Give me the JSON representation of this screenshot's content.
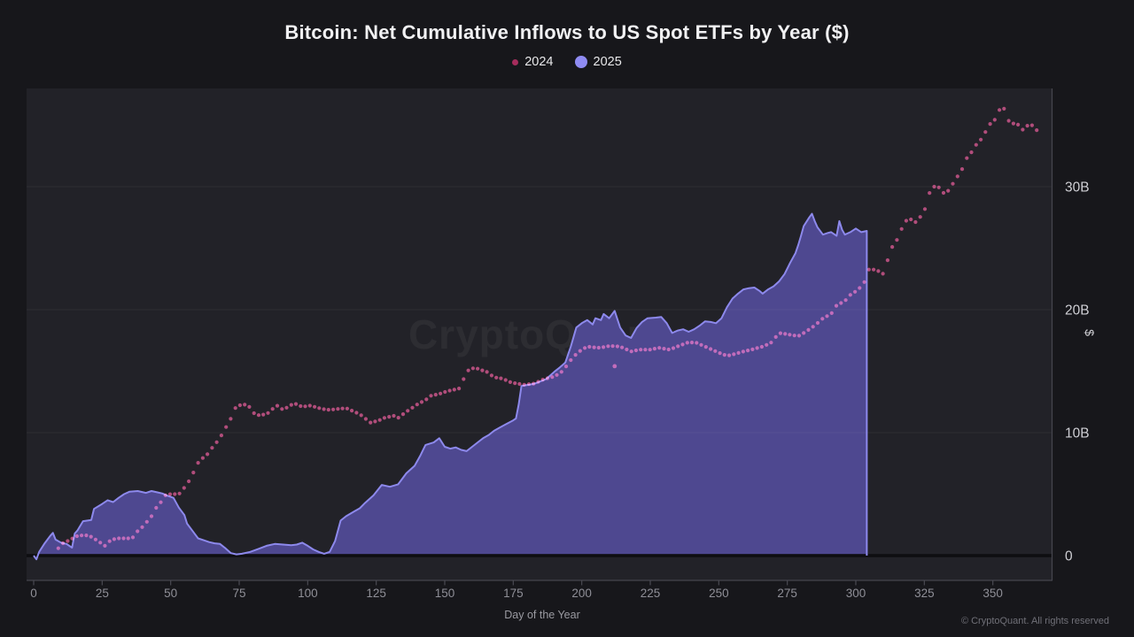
{
  "title": "Bitcoin: Net Cumulative Inflows to US Spot ETFs by Year ($)",
  "watermark": "CryptoQuant",
  "copyright": "© CryptoQuant. All rights reserved",
  "legend": {
    "items": [
      {
        "label": "2024",
        "color": "#a62c5c",
        "marker": "small-dot"
      },
      {
        "label": "2025",
        "color": "#8f8bf2",
        "marker": "large-dot"
      }
    ]
  },
  "chart_data": {
    "type": "line",
    "xlabel": "Day of the Year",
    "ylabel": "$",
    "value_unit": "billions of USD",
    "xlim": [
      0,
      372
    ],
    "ylim": [
      -2,
      38
    ],
    "grid": "horizontal",
    "legend_position": "top-center",
    "xticks": [
      0,
      25,
      50,
      75,
      100,
      125,
      150,
      175,
      200,
      225,
      250,
      275,
      300,
      325,
      350
    ],
    "yticks": [
      {
        "value": 0,
        "label": "0"
      },
      {
        "value": 10,
        "label": "10B"
      },
      {
        "value": 20,
        "label": "20B"
      },
      {
        "value": 30,
        "label": "30B"
      }
    ],
    "series": [
      {
        "name": "2024",
        "style": "dotted-scatter",
        "color": "#c23a74",
        "points": [
          [
            9,
            0.6
          ],
          [
            10,
            0.9
          ],
          [
            11,
            1.05
          ],
          [
            13,
            1.25
          ],
          [
            15,
            1.5
          ],
          [
            16,
            1.6
          ],
          [
            18,
            1.65
          ],
          [
            20,
            1.65
          ],
          [
            22,
            1.4
          ],
          [
            24,
            1.1
          ],
          [
            26,
            0.8
          ],
          [
            27,
            1.1
          ],
          [
            30,
            1.4
          ],
          [
            33,
            1.4
          ],
          [
            36,
            1.4
          ],
          [
            37,
            1.8
          ],
          [
            40,
            2.4
          ],
          [
            43,
            3.2
          ],
          [
            44,
            3.7
          ],
          [
            47,
            4.5
          ],
          [
            48,
            4.9
          ],
          [
            50,
            5.0
          ],
          [
            53,
            5.0
          ],
          [
            56,
            5.8
          ],
          [
            57,
            6.2
          ],
          [
            59,
            7.05
          ],
          [
            60,
            7.55
          ],
          [
            62,
            8.0
          ],
          [
            64,
            8.35
          ],
          [
            66,
            9.1
          ],
          [
            68,
            9.4
          ],
          [
            69,
            10.15
          ],
          [
            71,
            10.65
          ],
          [
            73,
            11.7
          ],
          [
            74,
            12.2
          ],
          [
            78,
            12.3
          ],
          [
            81,
            11.4
          ],
          [
            85,
            11.5
          ],
          [
            87,
            11.9
          ],
          [
            89,
            12.2
          ],
          [
            91,
            11.85
          ],
          [
            95,
            12.4
          ],
          [
            98,
            12.1
          ],
          [
            101,
            12.2
          ],
          [
            104,
            12.0
          ],
          [
            107,
            11.85
          ],
          [
            110,
            11.9
          ],
          [
            114,
            12.0
          ],
          [
            117,
            11.7
          ],
          [
            119,
            11.5
          ],
          [
            123,
            10.8
          ],
          [
            126,
            11.0
          ],
          [
            128,
            11.2
          ],
          [
            132,
            11.4
          ],
          [
            133,
            11.2
          ],
          [
            136,
            11.7
          ],
          [
            140,
            12.3
          ],
          [
            143,
            12.65
          ],
          [
            145,
            13.0
          ],
          [
            148,
            13.15
          ],
          [
            150,
            13.3
          ],
          [
            153,
            13.5
          ],
          [
            155,
            13.5
          ],
          [
            157,
            14.4
          ],
          [
            158,
            15.0
          ],
          [
            160,
            15.2
          ],
          [
            161,
            15.3
          ],
          [
            163,
            15.1
          ],
          [
            165,
            15.0
          ],
          [
            168,
            14.5
          ],
          [
            171,
            14.4
          ],
          [
            174,
            14.1
          ],
          [
            176,
            14.0
          ],
          [
            179,
            13.9
          ],
          [
            183,
            14.0
          ],
          [
            185,
            14.25
          ],
          [
            187,
            14.4
          ],
          [
            189,
            14.5
          ],
          [
            191,
            14.7
          ],
          [
            193,
            15.0
          ],
          [
            194,
            15.3
          ],
          [
            196,
            15.9
          ],
          [
            198,
            16.4
          ],
          [
            200,
            16.75
          ],
          [
            202,
            17.0
          ],
          [
            204,
            16.95
          ],
          [
            206,
            16.9
          ],
          [
            208,
            16.95
          ],
          [
            210,
            17.05
          ],
          [
            214,
            17.0
          ],
          [
            218,
            16.6
          ],
          [
            221,
            16.75
          ],
          [
            225,
            16.75
          ],
          [
            228,
            16.9
          ],
          [
            232,
            16.75
          ],
          [
            236,
            17.1
          ],
          [
            239,
            17.35
          ],
          [
            242,
            17.3
          ],
          [
            246,
            16.9
          ],
          [
            250,
            16.5
          ],
          [
            253,
            16.25
          ],
          [
            256,
            16.4
          ],
          [
            259,
            16.6
          ],
          [
            262,
            16.75
          ],
          [
            266,
            17.0
          ],
          [
            269,
            17.3
          ],
          [
            272,
            18.1
          ],
          [
            275,
            18.0
          ],
          [
            279,
            17.85
          ],
          [
            281,
            18.1
          ],
          [
            285,
            18.7
          ],
          [
            288,
            19.3
          ],
          [
            291,
            19.65
          ],
          [
            293,
            20.35
          ],
          [
            296,
            20.7
          ],
          [
            298,
            21.2
          ],
          [
            301,
            21.65
          ],
          [
            304,
            22.5
          ],
          [
            305,
            23.45
          ],
          [
            307,
            23.2
          ],
          [
            309,
            23.1
          ],
          [
            311,
            22.7
          ],
          [
            312,
            24.9
          ],
          [
            313,
            25.0
          ],
          [
            316,
            26.0
          ],
          [
            317,
            26.8
          ],
          [
            318,
            27.2
          ],
          [
            321,
            27.4
          ],
          [
            322,
            27.05
          ],
          [
            324,
            27.7
          ],
          [
            326,
            28.5
          ],
          [
            327,
            29.6
          ],
          [
            329,
            30.1
          ],
          [
            330,
            30.2
          ],
          [
            331,
            29.35
          ],
          [
            332,
            29.5
          ],
          [
            334,
            29.7
          ],
          [
            335,
            30.1
          ],
          [
            337,
            30.8
          ],
          [
            339,
            31.5
          ],
          [
            340,
            32.2
          ],
          [
            342,
            32.7
          ],
          [
            343,
            33.2
          ],
          [
            345,
            33.65
          ],
          [
            347,
            34.25
          ],
          [
            348,
            34.9
          ],
          [
            351,
            35.5
          ],
          [
            352,
            36.2
          ],
          [
            354,
            36.4
          ],
          [
            355,
            35.8
          ],
          [
            356,
            35.25
          ],
          [
            358,
            35.1
          ],
          [
            360,
            35.0
          ],
          [
            361,
            34.6
          ],
          [
            362,
            34.9
          ],
          [
            364,
            35.1
          ],
          [
            365,
            34.75
          ],
          [
            366,
            34.6
          ],
          [
            367,
            34.4
          ]
        ],
        "outlier_points": [
          [
            212,
            15.4
          ]
        ]
      },
      {
        "name": "2025",
        "style": "filled-area",
        "fill": "#4e4890",
        "stroke": "#8d89ec",
        "end_day": 304,
        "points": [
          [
            0,
            0
          ],
          [
            1,
            -0.3
          ],
          [
            2,
            0.3
          ],
          [
            4,
            1.0
          ],
          [
            6,
            1.6
          ],
          [
            7,
            1.85
          ],
          [
            8,
            1.3
          ],
          [
            10,
            1.05
          ],
          [
            12,
            0.95
          ],
          [
            14,
            0.65
          ],
          [
            15,
            1.8
          ],
          [
            16,
            2.05
          ],
          [
            18,
            2.8
          ],
          [
            21,
            2.9
          ],
          [
            22,
            3.8
          ],
          [
            25,
            4.2
          ],
          [
            27,
            4.5
          ],
          [
            29,
            4.35
          ],
          [
            31,
            4.7
          ],
          [
            33,
            5.0
          ],
          [
            35,
            5.2
          ],
          [
            38,
            5.25
          ],
          [
            41,
            5.1
          ],
          [
            43,
            5.25
          ],
          [
            45,
            5.15
          ],
          [
            47,
            5.05
          ],
          [
            49,
            4.85
          ],
          [
            51,
            4.7
          ],
          [
            53,
            3.9
          ],
          [
            55,
            3.3
          ],
          [
            56,
            2.6
          ],
          [
            58,
            2.0
          ],
          [
            60,
            1.4
          ],
          [
            62,
            1.25
          ],
          [
            64,
            1.1
          ],
          [
            66,
            1.0
          ],
          [
            68,
            0.95
          ],
          [
            70,
            0.6
          ],
          [
            72,
            0.2
          ],
          [
            74,
            0.1
          ],
          [
            76,
            0.15
          ],
          [
            79,
            0.3
          ],
          [
            82,
            0.55
          ],
          [
            85,
            0.8
          ],
          [
            88,
            0.95
          ],
          [
            91,
            0.9
          ],
          [
            94,
            0.85
          ],
          [
            96,
            0.9
          ],
          [
            98,
            1.05
          ],
          [
            100,
            0.8
          ],
          [
            102,
            0.5
          ],
          [
            104,
            0.3
          ],
          [
            106,
            0.15
          ],
          [
            108,
            0.3
          ],
          [
            110,
            1.2
          ],
          [
            112,
            2.85
          ],
          [
            114,
            3.2
          ],
          [
            117,
            3.6
          ],
          [
            119,
            3.85
          ],
          [
            121,
            4.3
          ],
          [
            124,
            4.9
          ],
          [
            127,
            5.75
          ],
          [
            130,
            5.6
          ],
          [
            133,
            5.8
          ],
          [
            136,
            6.7
          ],
          [
            139,
            7.3
          ],
          [
            141,
            8.1
          ],
          [
            143,
            9.0
          ],
          [
            146,
            9.2
          ],
          [
            148,
            9.55
          ],
          [
            150,
            8.85
          ],
          [
            152,
            8.7
          ],
          [
            154,
            8.8
          ],
          [
            156,
            8.6
          ],
          [
            158,
            8.5
          ],
          [
            160,
            8.85
          ],
          [
            162,
            9.2
          ],
          [
            164,
            9.55
          ],
          [
            166,
            9.8
          ],
          [
            168,
            10.15
          ],
          [
            170,
            10.4
          ],
          [
            172,
            10.65
          ],
          [
            175,
            11.0
          ],
          [
            176,
            11.15
          ],
          [
            177,
            12.3
          ],
          [
            178,
            13.8
          ],
          [
            181,
            13.9
          ],
          [
            183,
            14.0
          ],
          [
            187,
            14.35
          ],
          [
            190,
            14.95
          ],
          [
            192,
            15.3
          ],
          [
            194,
            15.7
          ],
          [
            196,
            17.0
          ],
          [
            198,
            18.55
          ],
          [
            200,
            18.9
          ],
          [
            202,
            19.15
          ],
          [
            204,
            18.8
          ],
          [
            205,
            19.3
          ],
          [
            207,
            19.15
          ],
          [
            208,
            19.65
          ],
          [
            210,
            19.3
          ],
          [
            212,
            19.9
          ],
          [
            214,
            18.55
          ],
          [
            216,
            17.9
          ],
          [
            218,
            17.7
          ],
          [
            220,
            18.5
          ],
          [
            222,
            19.0
          ],
          [
            224,
            19.3
          ],
          [
            227,
            19.35
          ],
          [
            229,
            19.4
          ],
          [
            231,
            18.9
          ],
          [
            233,
            18.1
          ],
          [
            235,
            18.3
          ],
          [
            237,
            18.4
          ],
          [
            239,
            18.2
          ],
          [
            241,
            18.4
          ],
          [
            243,
            18.7
          ],
          [
            245,
            19.05
          ],
          [
            247,
            19.0
          ],
          [
            249,
            18.9
          ],
          [
            251,
            19.3
          ],
          [
            253,
            20.2
          ],
          [
            255,
            20.9
          ],
          [
            257,
            21.3
          ],
          [
            259,
            21.65
          ],
          [
            261,
            21.75
          ],
          [
            263,
            21.8
          ],
          [
            265,
            21.5
          ],
          [
            266,
            21.3
          ],
          [
            268,
            21.65
          ],
          [
            270,
            21.9
          ],
          [
            272,
            22.3
          ],
          [
            274,
            22.9
          ],
          [
            276,
            23.8
          ],
          [
            278,
            24.6
          ],
          [
            279,
            25.25
          ],
          [
            280,
            26.0
          ],
          [
            281,
            26.8
          ],
          [
            283,
            27.5
          ],
          [
            284,
            27.8
          ],
          [
            285,
            27.2
          ],
          [
            286,
            26.7
          ],
          [
            288,
            26.1
          ],
          [
            290,
            26.25
          ],
          [
            291,
            26.3
          ],
          [
            293,
            26.0
          ],
          [
            294,
            27.2
          ],
          [
            295,
            26.5
          ],
          [
            296,
            26.1
          ],
          [
            298,
            26.3
          ],
          [
            300,
            26.6
          ],
          [
            302,
            26.3
          ],
          [
            304,
            26.4
          ]
        ]
      }
    ]
  }
}
